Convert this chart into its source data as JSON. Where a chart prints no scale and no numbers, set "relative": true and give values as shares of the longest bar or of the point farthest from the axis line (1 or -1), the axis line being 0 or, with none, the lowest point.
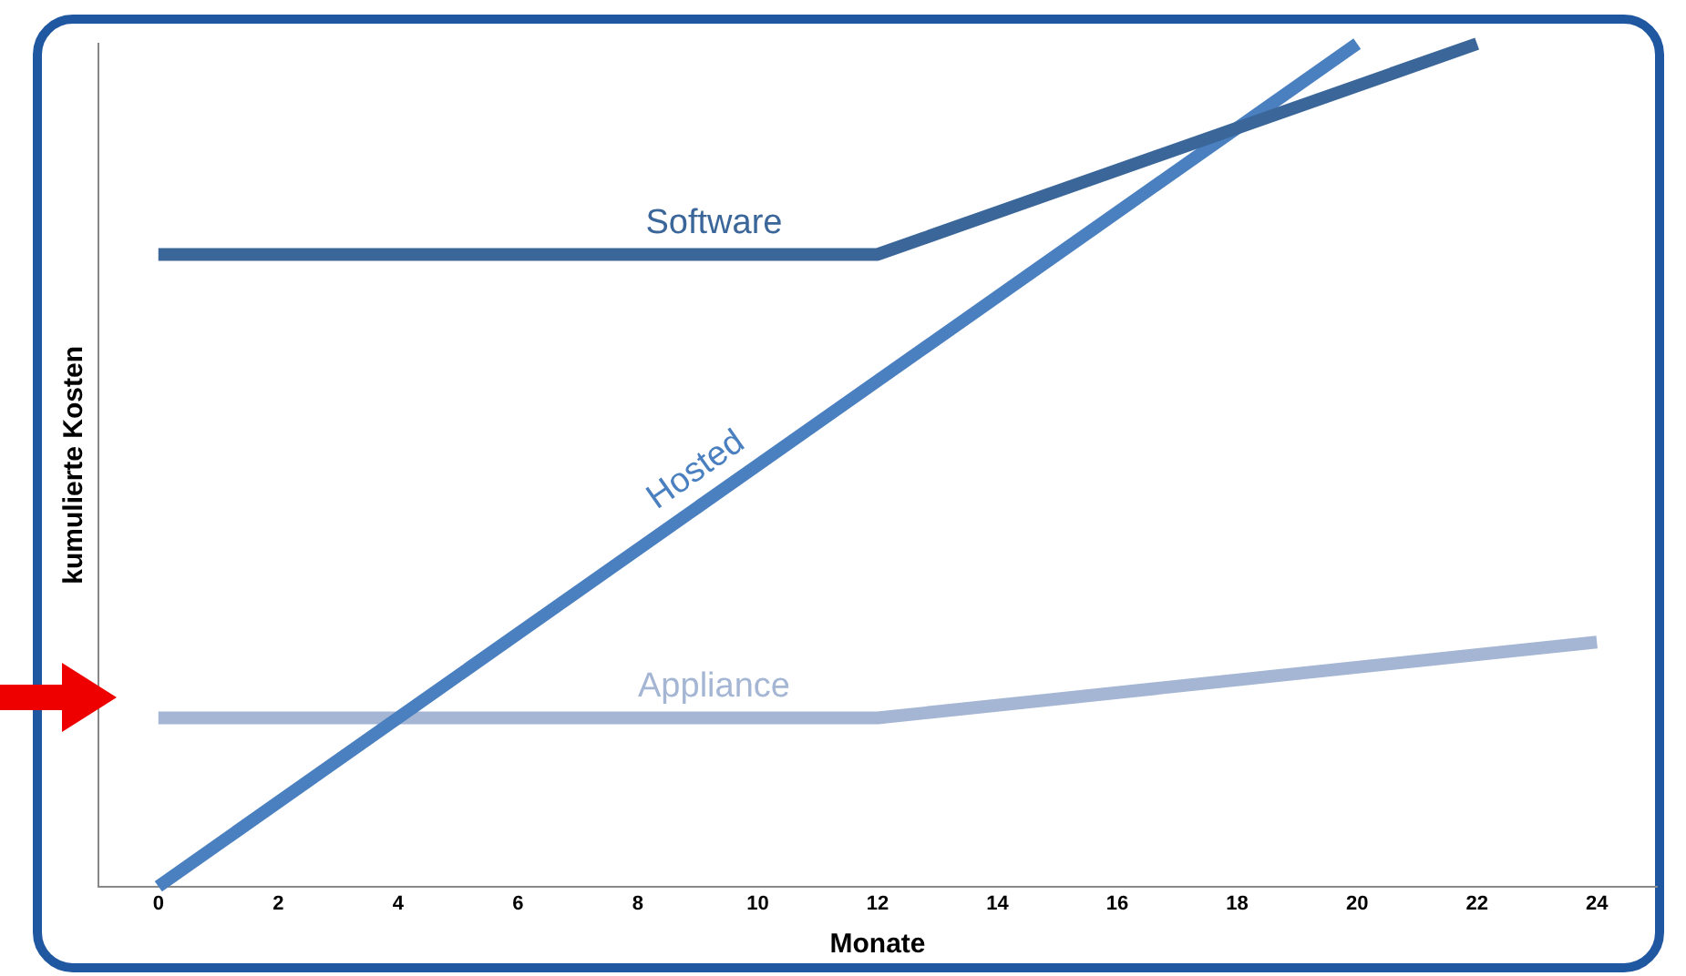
{
  "chart_data": {
    "type": "line",
    "xlabel": "Monate",
    "ylabel": "kumulierte Kosten",
    "relative": true,
    "xlim": [
      -1,
      25
    ],
    "xticks": [
      0,
      2,
      4,
      6,
      8,
      10,
      12,
      14,
      16,
      18,
      20,
      22,
      24
    ],
    "grid": false,
    "legend": false,
    "marker": "none",
    "line_style": "solid",
    "series": [
      {
        "name": "Software",
        "color": "#3a6699",
        "x": [
          0,
          12,
          22
        ],
        "values": [
          0.75,
          0.75,
          1
        ]
      },
      {
        "name": "Hosted",
        "color": "#4a80c0",
        "x": [
          0,
          20
        ],
        "values": [
          0,
          1
        ]
      },
      {
        "name": "Appliance",
        "color": "#a4b6d4",
        "x": [
          0,
          12,
          24
        ],
        "values": [
          0.2,
          0.2,
          0.29
        ]
      }
    ]
  }
}
